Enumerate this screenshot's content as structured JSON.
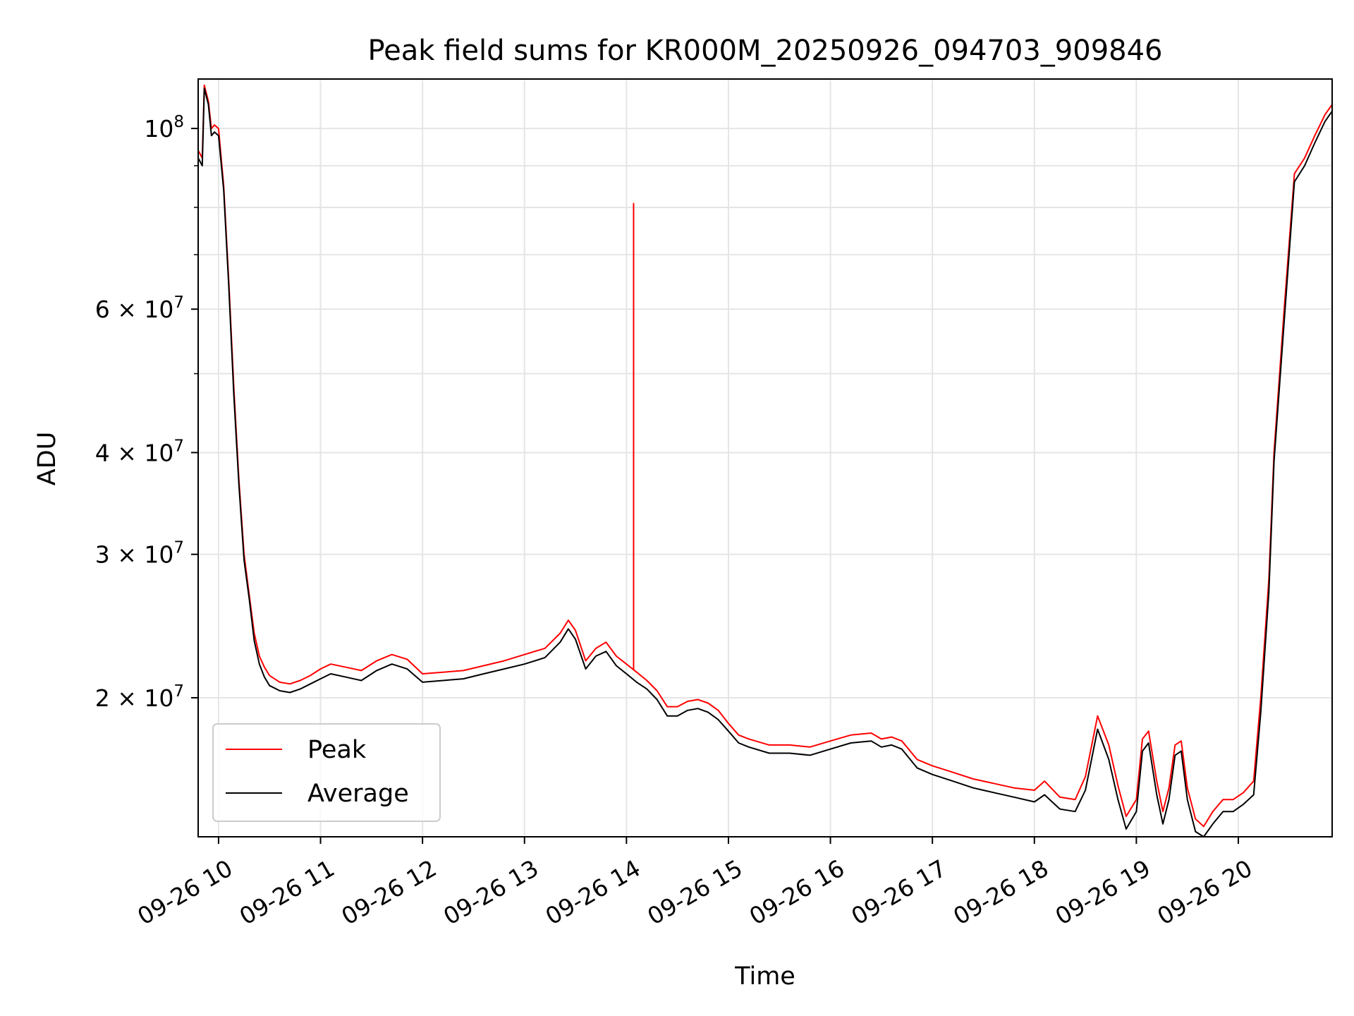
{
  "chart_data": {
    "type": "line",
    "title": "Peak field sums for KR000M_20250926_094703_909846",
    "xlabel": "Time",
    "ylabel": "ADU",
    "x_unit": "hour of 2025-09-26",
    "xlim": [
      9.8,
      20.92
    ],
    "ylim": [
      13500000,
      115000000
    ],
    "yscale": "log",
    "grid": true,
    "legend_position": "lower-left",
    "x_ticks": [
      {
        "value": 10,
        "label": "09-26 10"
      },
      {
        "value": 11,
        "label": "09-26 11"
      },
      {
        "value": 12,
        "label": "09-26 12"
      },
      {
        "value": 13,
        "label": "09-26 13"
      },
      {
        "value": 14,
        "label": "09-26 14"
      },
      {
        "value": 15,
        "label": "09-26 15"
      },
      {
        "value": 16,
        "label": "09-26 16"
      },
      {
        "value": 17,
        "label": "09-26 17"
      },
      {
        "value": 18,
        "label": "09-26 18"
      },
      {
        "value": 19,
        "label": "09-26 19"
      },
      {
        "value": 20,
        "label": "09-26 20"
      }
    ],
    "y_major_ticks": [
      {
        "value": 100000000,
        "label": "10",
        "exp": "8"
      },
      {
        "value": 60000000,
        "label": "6 × 10",
        "exp": "7"
      },
      {
        "value": 40000000,
        "label": "4 × 10",
        "exp": "7"
      },
      {
        "value": 30000000,
        "label": "3 × 10",
        "exp": "7"
      },
      {
        "value": 20000000,
        "label": "2 × 10",
        "exp": "7"
      }
    ],
    "y_minor_ticks": [
      90000000,
      80000000,
      70000000,
      50000000
    ],
    "series": [
      {
        "name": "Peak",
        "color": "#ff0000",
        "x": [
          9.8,
          9.84,
          9.86,
          9.9,
          9.93,
          9.96,
          10.0,
          10.05,
          10.1,
          10.15,
          10.2,
          10.25,
          10.3,
          10.35,
          10.4,
          10.45,
          10.5,
          10.6,
          10.7,
          10.8,
          10.9,
          11.0,
          11.1,
          11.25,
          11.4,
          11.55,
          11.7,
          11.85,
          12.0,
          12.2,
          12.4,
          12.6,
          12.8,
          13.0,
          13.2,
          13.35,
          13.43,
          13.5,
          13.6,
          13.7,
          13.8,
          13.9,
          14.0,
          14.1,
          14.2,
          14.3,
          14.4,
          14.5,
          14.6,
          14.7,
          14.8,
          14.9,
          15.0,
          15.1,
          15.2,
          15.4,
          15.6,
          15.8,
          16.0,
          16.2,
          16.4,
          16.5,
          16.6,
          16.7,
          16.85,
          17.0,
          17.2,
          17.4,
          17.6,
          17.8,
          18.0,
          18.1,
          18.25,
          18.4,
          18.5,
          18.62,
          18.73,
          18.82,
          18.9,
          19.0,
          19.06,
          19.12,
          19.2,
          19.26,
          19.32,
          19.38,
          19.44,
          19.5,
          19.58,
          19.66,
          19.75,
          19.85,
          19.95,
          20.05,
          20.15,
          20.22,
          20.3,
          20.35,
          20.45,
          20.55,
          20.65,
          20.75,
          20.85,
          20.92
        ],
        "y": [
          94000000,
          92000000,
          113000000,
          108000000,
          100000000,
          101000000,
          100000000,
          85000000,
          65000000,
          48000000,
          37000000,
          30000000,
          26800000,
          24000000,
          22500000,
          21800000,
          21300000,
          20900000,
          20800000,
          21000000,
          21300000,
          21700000,
          22000000,
          21800000,
          21600000,
          22200000,
          22600000,
          22300000,
          21400000,
          21500000,
          21600000,
          21900000,
          22200000,
          22600000,
          23000000,
          24000000,
          24900000,
          24200000,
          22200000,
          23000000,
          23400000,
          22500000,
          22000000,
          21500000,
          21000000,
          20400000,
          19500000,
          19500000,
          19800000,
          19900000,
          19700000,
          19300000,
          18600000,
          18000000,
          17800000,
          17500000,
          17500000,
          17400000,
          17700000,
          18000000,
          18100000,
          17800000,
          17900000,
          17700000,
          16800000,
          16500000,
          16200000,
          15900000,
          15700000,
          15500000,
          15400000,
          15800000,
          15100000,
          15000000,
          16000000,
          19000000,
          17500000,
          15600000,
          14300000,
          15000000,
          17800000,
          18200000,
          15800000,
          14500000,
          15500000,
          17500000,
          17700000,
          15500000,
          14200000,
          13900000,
          14500000,
          15000000,
          15000000,
          15300000,
          15800000,
          20000000,
          28000000,
          40000000,
          60000000,
          88000000,
          92000000,
          98000000,
          104000000,
          107000000
        ]
      },
      {
        "name": "Average",
        "color": "#000000",
        "x": [
          9.8,
          9.84,
          9.86,
          9.9,
          9.93,
          9.96,
          10.0,
          10.05,
          10.1,
          10.15,
          10.2,
          10.25,
          10.3,
          10.35,
          10.4,
          10.45,
          10.5,
          10.6,
          10.7,
          10.8,
          10.9,
          11.0,
          11.1,
          11.25,
          11.4,
          11.55,
          11.7,
          11.85,
          12.0,
          12.2,
          12.4,
          12.6,
          12.8,
          13.0,
          13.2,
          13.35,
          13.43,
          13.5,
          13.6,
          13.7,
          13.8,
          13.9,
          14.0,
          14.1,
          14.2,
          14.3,
          14.4,
          14.5,
          14.6,
          14.7,
          14.8,
          14.9,
          15.0,
          15.1,
          15.2,
          15.4,
          15.6,
          15.8,
          16.0,
          16.2,
          16.4,
          16.5,
          16.6,
          16.7,
          16.85,
          17.0,
          17.2,
          17.4,
          17.6,
          17.8,
          18.0,
          18.1,
          18.25,
          18.4,
          18.5,
          18.62,
          18.73,
          18.82,
          18.9,
          19.0,
          19.06,
          19.12,
          19.2,
          19.26,
          19.32,
          19.38,
          19.44,
          19.5,
          19.58,
          19.66,
          19.75,
          19.85,
          19.95,
          20.05,
          20.15,
          20.22,
          20.3,
          20.35,
          20.45,
          20.55,
          20.65,
          20.75,
          20.85,
          20.92
        ],
        "y": [
          92000000,
          90000000,
          112000000,
          107000000,
          98000000,
          99000000,
          98000000,
          84000000,
          64000000,
          47000000,
          36500000,
          29500000,
          26500000,
          23500000,
          22000000,
          21200000,
          20700000,
          20400000,
          20300000,
          20500000,
          20800000,
          21100000,
          21400000,
          21200000,
          21000000,
          21600000,
          22000000,
          21700000,
          20900000,
          21000000,
          21100000,
          21400000,
          21700000,
          22000000,
          22400000,
          23400000,
          24300000,
          23600000,
          21700000,
          22500000,
          22800000,
          21900000,
          21400000,
          20900000,
          20500000,
          19900000,
          19000000,
          19000000,
          19300000,
          19400000,
          19200000,
          18800000,
          18200000,
          17600000,
          17400000,
          17100000,
          17100000,
          17000000,
          17300000,
          17600000,
          17700000,
          17400000,
          17500000,
          17300000,
          16400000,
          16100000,
          15800000,
          15500000,
          15300000,
          15100000,
          14900000,
          15200000,
          14600000,
          14500000,
          15400000,
          18300000,
          16800000,
          15000000,
          13800000,
          14500000,
          17200000,
          17600000,
          15200000,
          14000000,
          15000000,
          17000000,
          17200000,
          15000000,
          13700000,
          13500000,
          14000000,
          14500000,
          14500000,
          14800000,
          15200000,
          19200000,
          27000000,
          39000000,
          58000000,
          86000000,
          90000000,
          96000000,
          102000000,
          105000000
        ]
      }
    ],
    "annotations": [
      {
        "series": "Peak",
        "x": 14.07,
        "y": 81000000,
        "note": "single spike"
      }
    ]
  }
}
